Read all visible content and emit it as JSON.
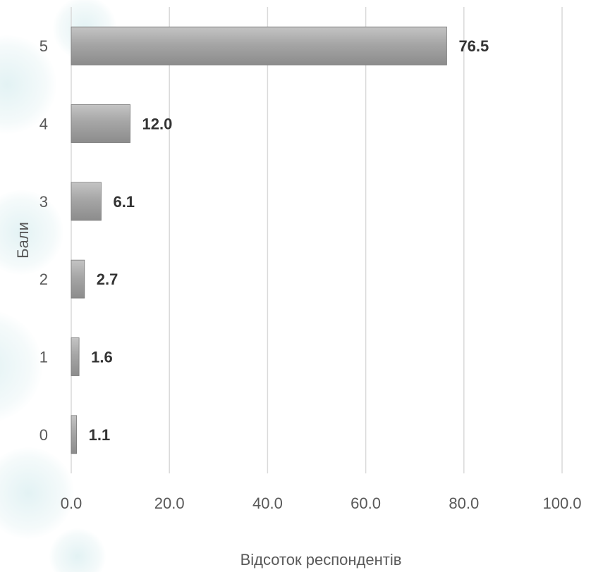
{
  "chart_data": {
    "type": "bar",
    "orientation": "horizontal",
    "categories": [
      "0",
      "1",
      "2",
      "3",
      "4",
      "5"
    ],
    "values": [
      1.1,
      1.6,
      2.7,
      6.1,
      12.0,
      76.5
    ],
    "value_labels": [
      "1.1",
      "1.6",
      "2.7",
      "6.1",
      "12.0",
      "76.5"
    ],
    "xlabel": "Відсоток респондентів",
    "ylabel": "Бали",
    "xlim": [
      0,
      100
    ],
    "x_ticks": [
      "0.0",
      "20.0",
      "40.0",
      "60.0",
      "80.0",
      "100.0"
    ],
    "grid": "vertical",
    "legend": "none"
  },
  "colors": {
    "bar_light": "#c4c4c4",
    "bar_dark": "#8c8c8c",
    "bar_edge": "#7a7a7a",
    "gridline": "#d9d9d9",
    "background_tint": "#e6f3f4"
  }
}
